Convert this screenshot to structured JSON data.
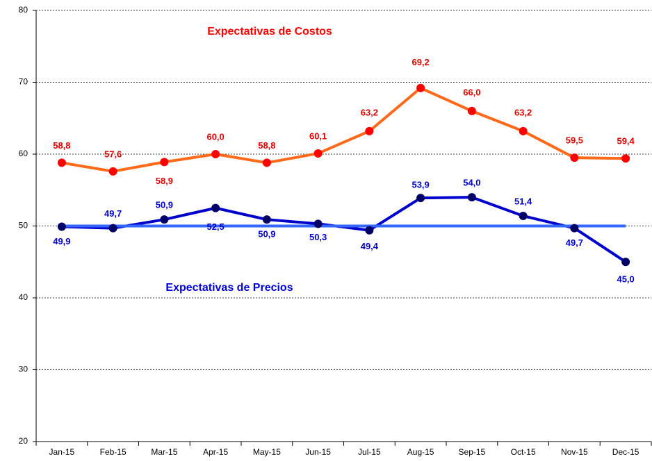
{
  "chart_data": {
    "type": "line",
    "categories": [
      "Jan-15",
      "Feb-15",
      "Mar-15",
      "Apr-15",
      "May-15",
      "Jun-15",
      "Jul-15",
      "Aug-15",
      "Sep-15",
      "Oct-15",
      "Nov-15",
      "Dec-15"
    ],
    "series": [
      {
        "name": "Expectativas de Costos",
        "color": "#ff6a1a",
        "marker_color": "#ff0000",
        "label_color": "#e00000",
        "values": [
          58.8,
          57.6,
          58.9,
          60.0,
          58.8,
          60.1,
          63.2,
          69.2,
          66.0,
          63.2,
          59.5,
          59.4
        ],
        "value_labels": [
          "58,8",
          "57,6",
          "58,9",
          "60,0",
          "58,8",
          "60,1",
          "63,2",
          "69,2",
          "66,0",
          "63,2",
          "59,5",
          "59,4"
        ]
      },
      {
        "name": "Expectativas de Precios",
        "color": "#0000cc",
        "marker_color": "#000066",
        "label_color": "#0000cc",
        "values": [
          49.9,
          49.7,
          50.9,
          52.5,
          50.9,
          50.3,
          49.4,
          53.9,
          54.0,
          51.4,
          49.7,
          45.0
        ],
        "value_labels": [
          "49,9",
          "49,7",
          "50,9",
          "52,5",
          "50,9",
          "50,3",
          "49,4",
          "53,9",
          "54,0",
          "51,4",
          "49,7",
          "45,0"
        ]
      }
    ],
    "reference_line": {
      "value": 50,
      "color": "#3366ff"
    },
    "ylim": [
      20,
      80
    ],
    "yticks": [
      20,
      30,
      40,
      50,
      60,
      70,
      80
    ],
    "grid": true
  }
}
